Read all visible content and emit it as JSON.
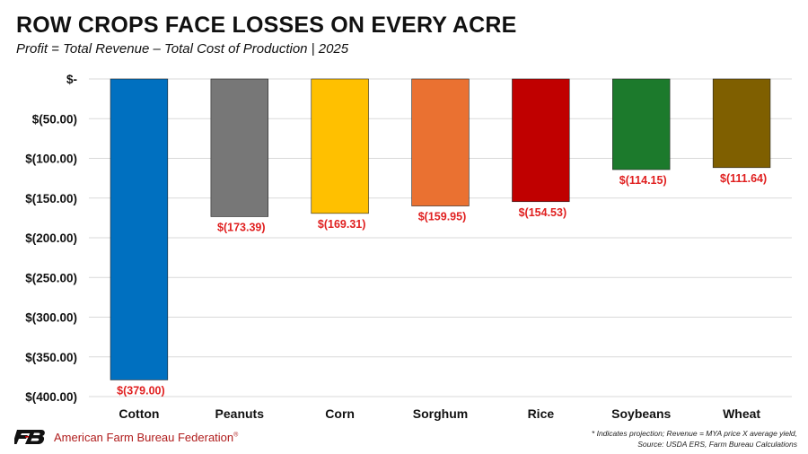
{
  "header": {
    "title": "ROW CROPS FACE LOSSES ON EVERY ACRE",
    "subtitle": "Profit = Total Revenue – Total Cost of Production  |  2025"
  },
  "chart_data": {
    "type": "bar",
    "title": "ROW CROPS FACE LOSSES ON EVERY ACRE",
    "subtitle": "Profit = Total Revenue – Total Cost of Production  |  2025",
    "categories": [
      "Cotton",
      "Peanuts",
      "Corn",
      "Sorghum",
      "Rice",
      "Soybeans",
      "Wheat"
    ],
    "values": [
      -379.0,
      -173.39,
      -169.31,
      -159.95,
      -154.53,
      -114.15,
      -111.64
    ],
    "data_labels": [
      "$(379.00)",
      "$(173.39)",
      "$(169.31)",
      "$(159.95)",
      "$(154.53)",
      "$(114.15)",
      "$(111.64)"
    ],
    "colors": [
      "#0070c0",
      "#777777",
      "#ffc000",
      "#ea7131",
      "#c00000",
      "#1c7a2c",
      "#7f5f00"
    ],
    "label_color": "#e02020",
    "ylim": [
      -400,
      0
    ],
    "yticks": [
      0,
      -50,
      -100,
      -150,
      -200,
      -250,
      -300,
      -350,
      -400
    ],
    "ytick_labels": [
      "$-",
      "$(50.00)",
      "$(100.00)",
      "$(150.00)",
      "$(200.00)",
      "$(250.00)",
      "$(300.00)",
      "$(350.00)",
      "$(400.00)"
    ],
    "xlabel": "",
    "ylabel": "",
    "grid": true,
    "legend": false
  },
  "footer": {
    "logo_icon": "fb-logo-icon",
    "organization": "American Farm Bureau Federation",
    "trademark": "®",
    "note_line1": "* Indicates projection; Revenue = MYA price X average yield,",
    "note_line2": "Source: USDA ERS, Farm Bureau Calculations"
  }
}
